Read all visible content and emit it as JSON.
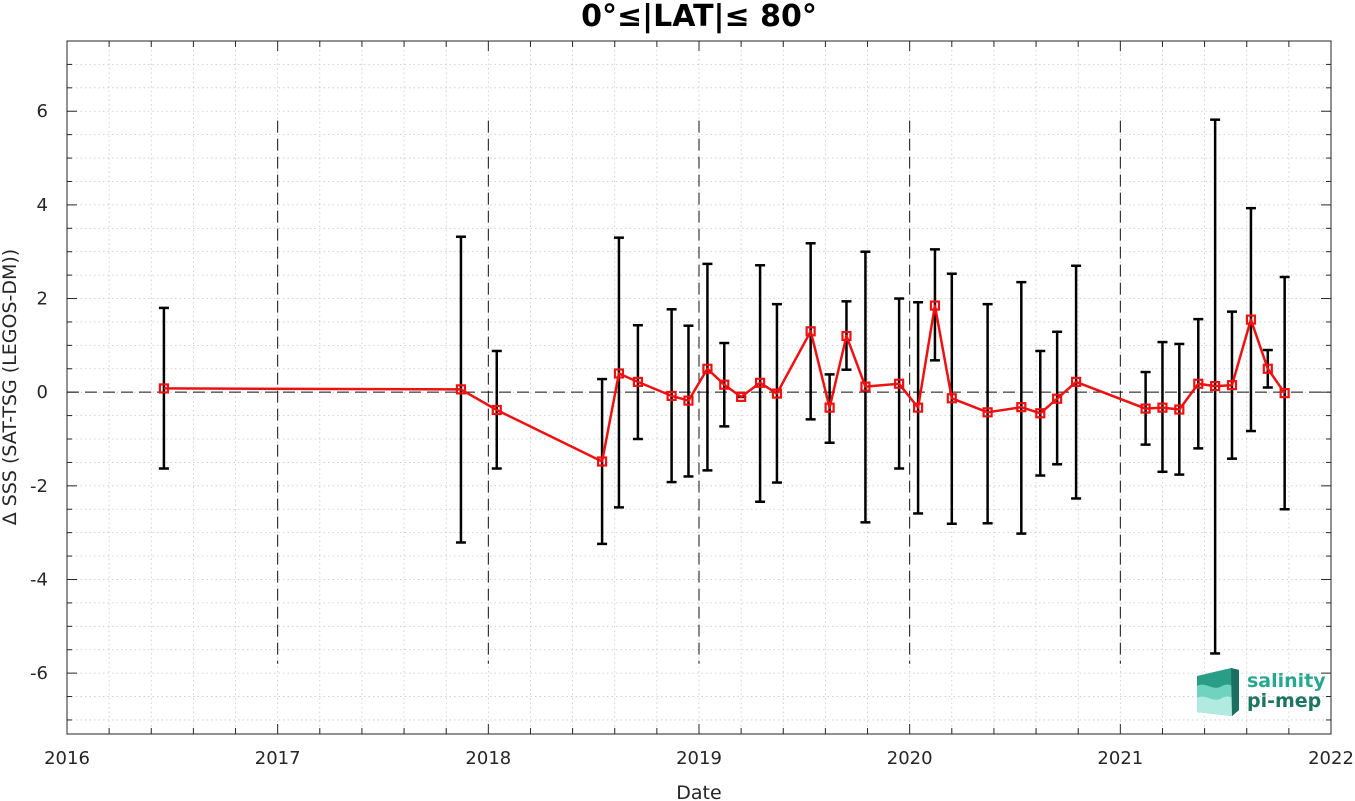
{
  "chart_data": {
    "type": "line",
    "title": "0°≤|LAT|≤ 80°",
    "xlabel": "Date",
    "ylabel": "Δ SSS (SAT-TSG (LEGOS-DM))",
    "xlim": [
      2016,
      2022
    ],
    "ylim": [
      -7.3,
      7.5
    ],
    "xticks": [
      2016,
      2017,
      2018,
      2019,
      2020,
      2021,
      2022
    ],
    "xtick_labels": [
      "2016",
      "2017",
      "2018",
      "2019",
      "2020",
      "2021",
      "2022"
    ],
    "yticks": [
      -6,
      -4,
      -2,
      0,
      2,
      4,
      6
    ],
    "ytick_labels": [
      "-6",
      "-4",
      "-2",
      "0",
      "2",
      "4",
      "6"
    ],
    "grid": "dotted major and minor",
    "year_boundaries": [
      2017,
      2018,
      2019,
      2020,
      2021
    ],
    "zero_line": 0,
    "colors": {
      "line": "#ee1111",
      "errorbar": "#000000",
      "grid": "#c8c8c8"
    },
    "series": [
      {
        "x": [
          2016.46,
          2017.87,
          2018.04,
          2018.54,
          2018.62,
          2018.71,
          2018.87,
          2018.95,
          2019.04,
          2019.12,
          2019.2,
          2019.29,
          2019.37,
          2019.53,
          2019.62,
          2019.7,
          2019.79,
          2019.95,
          2020.04,
          2020.12,
          2020.2,
          2020.37,
          2020.53,
          2020.62,
          2020.7,
          2020.79,
          2021.12,
          2021.2,
          2021.28,
          2021.37,
          2021.45,
          2021.53,
          2021.62,
          2021.7,
          2021.78
        ],
        "y": [
          0.08,
          0.06,
          -0.38,
          -1.48,
          0.4,
          0.22,
          -0.08,
          -0.18,
          0.5,
          0.16,
          -0.1,
          0.2,
          -0.03,
          1.3,
          -0.33,
          1.2,
          0.12,
          0.18,
          -0.33,
          1.85,
          -0.13,
          -0.43,
          -0.32,
          -0.45,
          -0.14,
          0.22,
          -0.35,
          -0.33,
          -0.37,
          0.18,
          0.13,
          0.15,
          1.55,
          0.5,
          -0.02
        ],
        "y_upper": [
          1.8,
          3.32,
          0.88,
          0.28,
          3.3,
          1.43,
          1.77,
          1.42,
          2.74,
          1.05,
          -0.1,
          2.71,
          1.88,
          3.18,
          0.38,
          1.94,
          3.0,
          2.0,
          1.92,
          3.05,
          2.53,
          1.88,
          2.35,
          0.88,
          1.29,
          2.7,
          0.43,
          1.07,
          1.03,
          1.56,
          5.82,
          1.72,
          3.93,
          0.9,
          2.46
        ],
        "y_lower": [
          -1.63,
          -3.21,
          -1.63,
          -3.24,
          -2.46,
          -1.0,
          -1.92,
          -1.8,
          -1.67,
          -0.73,
          -0.1,
          -2.34,
          -1.93,
          -0.58,
          -1.08,
          0.48,
          -2.78,
          -1.63,
          -2.59,
          0.68,
          -2.81,
          -2.8,
          -3.02,
          -1.78,
          -1.54,
          -2.27,
          -1.12,
          -1.7,
          -1.76,
          -1.2,
          -5.58,
          -1.42,
          -0.83,
          0.1,
          -2.5
        ]
      }
    ]
  },
  "logo": {
    "line1": "salinity",
    "line2": "pi-mep",
    "color": "#2aa88f"
  }
}
